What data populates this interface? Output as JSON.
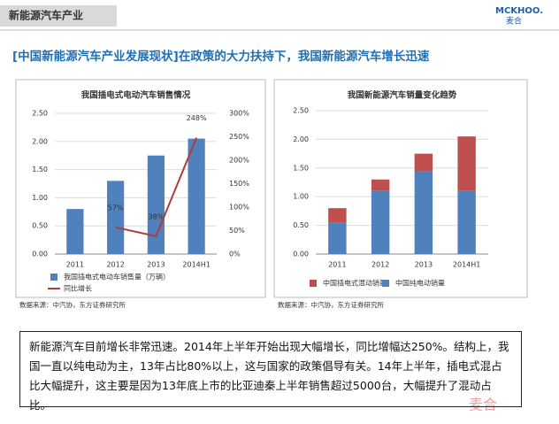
{
  "header": {
    "title": "新能源汽车产业",
    "logo": "MCKHOO.",
    "logo_cn": "麦合"
  },
  "headline": "[中国新能源汽车产业发展现状]在政策的大力扶持下，我国新能源汽车增长迅速",
  "chart_data": [
    {
      "type": "bar",
      "title": "我国插电式电动汽车销售情况",
      "categories": [
        "2011",
        "2012",
        "2013",
        "2014H1"
      ],
      "series": [
        {
          "name": "我国插电式电动车销售量（万辆）",
          "color": "#4f81bd",
          "values": [
            0.8,
            1.3,
            1.75,
            2.05
          ]
        },
        {
          "name": "同比增长",
          "color": "#b03c3c",
          "type": "line",
          "axis": "y2",
          "values": [
            null,
            57,
            38,
            248
          ],
          "value_labels": [
            null,
            "57%",
            "38%",
            "248%"
          ]
        }
      ],
      "ylim": [
        0,
        2.5
      ],
      "yticks": [
        {
          "value": 0,
          "label": "0.00"
        },
        {
          "value": 0.5,
          "label": "0.50"
        },
        {
          "value": 1,
          "label": "1.00"
        },
        {
          "value": 1.5,
          "label": "1.50"
        },
        {
          "value": 2,
          "label": "2.00"
        },
        {
          "value": 2.5,
          "label": "2.50"
        }
      ],
      "y2lim": [
        0,
        300
      ],
      "y2ticks": [
        {
          "value": 0,
          "label": "0%"
        },
        {
          "value": 50,
          "label": "50%"
        },
        {
          "value": 100,
          "label": "100%"
        },
        {
          "value": 150,
          "label": "150%"
        },
        {
          "value": 200,
          "label": "200%"
        },
        {
          "value": 250,
          "label": "250%"
        },
        {
          "value": 300,
          "label": "300%"
        }
      ],
      "grid": true,
      "legend": "bottom",
      "source": "数据来源：中汽协，东方证券研究所"
    },
    {
      "type": "bar",
      "title": "我国新能源汽车销量变化趋势",
      "stacked": true,
      "categories": [
        "2011",
        "2012",
        "2013",
        "2014H1"
      ],
      "series": [
        {
          "name": "中国插电式混动销量",
          "color": "#c0504d",
          "values": [
            0.25,
            0.2,
            0.3,
            0.95
          ]
        },
        {
          "name": "中国纯电动销量",
          "color": "#4f81bd",
          "values": [
            0.55,
            1.1,
            1.45,
            1.1
          ]
        }
      ],
      "ylim": [
        0,
        2.5
      ],
      "yticks": [
        {
          "value": 0,
          "label": "0.00"
        },
        {
          "value": 0.5,
          "label": "0.50"
        },
        {
          "value": 1,
          "label": "1.00"
        },
        {
          "value": 1.5,
          "label": "1.50"
        },
        {
          "value": 2,
          "label": "2.00"
        },
        {
          "value": 2.5,
          "label": "2.50"
        }
      ],
      "grid": true,
      "legend": "bottom",
      "source": "数据来源：中汽协，东方证券研究所"
    }
  ],
  "body": "新能源汽车目前增长非常迅速。2014年上半年开始出现大幅增长，同比增幅达250%。结构上，我国一直以纯电动为主，13年占比80%以上，这与国家的政策倡导有关。14年上半年，插电式混占比大幅提升，这主要是因为13年底上市的比亚迪秦上半年销售超过5000台，大幅提升了混动占比。",
  "watermark": "麦合"
}
